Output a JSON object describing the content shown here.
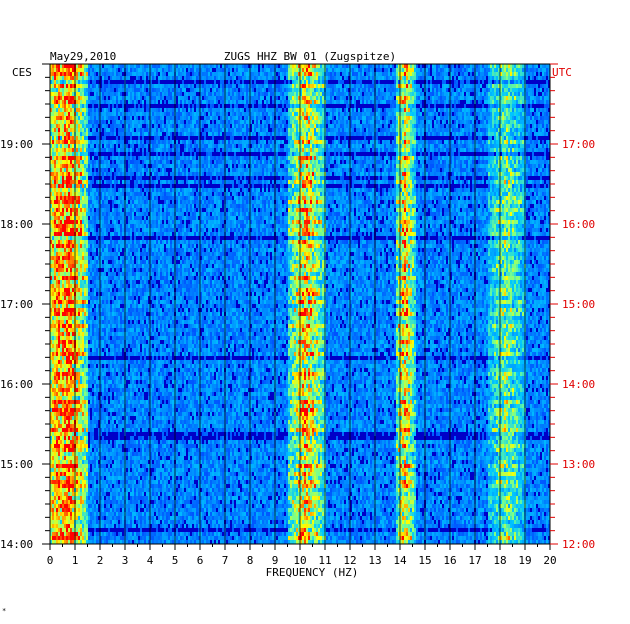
{
  "header": {
    "date": "May29,2010",
    "station": "ZUGS HHZ BW 01 (Zugspitze)"
  },
  "chart_data": {
    "type": "heatmap",
    "title": "ZUGS HHZ BW 01 (Zugspitze)",
    "date": "May29,2010",
    "xlabel": "FREQUENCY (HZ)",
    "xlim": [
      0,
      20
    ],
    "x_ticks": [
      "0",
      "1",
      "2",
      "3",
      "4",
      "5",
      "6",
      "7",
      "8",
      "9",
      "10",
      "11",
      "12",
      "13",
      "14",
      "15",
      "16",
      "17",
      "18",
      "19",
      "20"
    ],
    "left_axis_label": "CES",
    "right_axis_label": "UTC",
    "left_time_labels": [
      "19:00",
      "18:00",
      "17:00",
      "16:00",
      "15:00",
      "14:00"
    ],
    "right_time_labels": [
      "17:00",
      "16:00",
      "15:00",
      "14:00",
      "13:00",
      "12:00"
    ],
    "time_range_ces": [
      "14:00",
      "20:00"
    ],
    "colors": {
      "background": "#0000c8",
      "low": "#0032ff",
      "mid": "#00c8ff",
      "high": "#ffff00",
      "peak": "#ff0000",
      "utc": "#e00000"
    },
    "energy_bands_hz": [
      {
        "name": "low frequency band",
        "from": 0,
        "to": 1.5,
        "level": "high"
      },
      {
        "name": "10-11 Hz band",
        "from": 9.5,
        "to": 11,
        "level": "medium"
      },
      {
        "name": "14-14.5 Hz band",
        "from": 13.8,
        "to": 14.6,
        "level": "medium"
      },
      {
        "name": "18-19 Hz band",
        "from": 17.5,
        "to": 19,
        "level": "low"
      }
    ]
  },
  "footer": {
    "mark": "*"
  }
}
